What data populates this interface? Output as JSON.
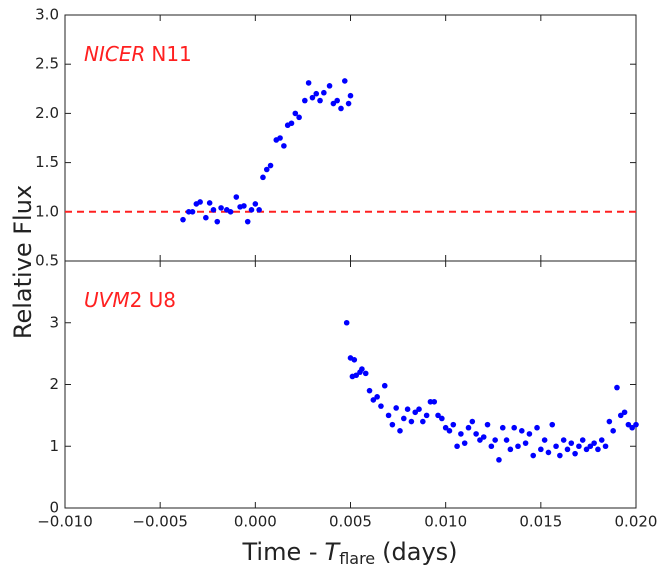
{
  "chart_data": [
    {
      "type": "scatter",
      "annotation": {
        "italic": "NICER",
        "normal": "N11"
      },
      "annotation_color": "#ff2020",
      "ylabel": "Relative Flux",
      "xlim": [
        -0.01,
        0.02
      ],
      "ylim": [
        0.5,
        3.0
      ],
      "yticks": [
        0.5,
        {
          "value": 1,
          "label": "1.0"
        },
        1.5,
        {
          "value": 2,
          "label": "2.0"
        },
        2.5,
        {
          "value": 3,
          "label": "3.0"
        }
      ],
      "reference_line": {
        "value": 1.0,
        "color": "#ff2020",
        "style": "dashed"
      },
      "color": "#0000ff",
      "x": [
        -0.0038,
        -0.0035,
        -0.0033,
        -0.0031,
        -0.0029,
        -0.0026,
        -0.0024,
        -0.0022,
        -0.002,
        -0.0018,
        -0.0015,
        -0.0013,
        -0.001,
        -0.0008,
        -0.0006,
        -0.0004,
        -0.0002,
        0.0,
        0.0002,
        0.0004,
        0.0006,
        0.0008,
        0.0011,
        0.0013,
        0.0015,
        0.0017,
        0.0019,
        0.0021,
        0.0023,
        0.0026,
        0.0028,
        0.003,
        0.0032,
        0.0034,
        0.0036,
        0.0039,
        0.0041,
        0.0043,
        0.0045,
        0.0047,
        0.0049,
        0.005
      ],
      "values": [
        0.92,
        1.0,
        1.0,
        1.08,
        1.1,
        0.94,
        1.09,
        1.02,
        0.9,
        1.04,
        1.02,
        1.0,
        1.15,
        1.05,
        1.06,
        0.9,
        1.02,
        1.08,
        1.02,
        1.35,
        1.43,
        1.47,
        1.73,
        1.75,
        1.67,
        1.88,
        1.9,
        2.0,
        1.96,
        2.13,
        2.31,
        2.16,
        2.2,
        2.13,
        2.21,
        2.28,
        2.1,
        2.13,
        2.05,
        2.33,
        2.1,
        2.18
      ]
    },
    {
      "type": "scatter",
      "annotation": {
        "italic": "UVM",
        "normal": "2 U8"
      },
      "annotation_color": "#ff2020",
      "xlabel": {
        "before": "Time -",
        "italic": "T",
        "subscript": "flare",
        "after": "(days)"
      },
      "xlim": [
        -0.01,
        0.02
      ],
      "xticks": [
        {
          "value": -0.01,
          "label": "−0.010"
        },
        {
          "value": -0.005,
          "label": "−0.005"
        },
        {
          "value": 0,
          "label": "0.000"
        },
        {
          "value": 0.005,
          "label": "0.005"
        },
        {
          "value": 0.01,
          "label": "0.010"
        },
        {
          "value": 0.015,
          "label": "0.015"
        },
        {
          "value": 0.02,
          "label": "0.020"
        }
      ],
      "ylim": [
        0,
        4
      ],
      "yticks": [
        0,
        1,
        2,
        3
      ],
      "color": "#0000ff",
      "x": [
        0.0048,
        0.005,
        0.0051,
        0.0052,
        0.0053,
        0.0055,
        0.0056,
        0.0058,
        0.006,
        0.0062,
        0.0064,
        0.0066,
        0.0068,
        0.007,
        0.0072,
        0.0074,
        0.0076,
        0.0078,
        0.008,
        0.0082,
        0.0084,
        0.0086,
        0.0088,
        0.009,
        0.0092,
        0.0094,
        0.0096,
        0.0098,
        0.01,
        0.0102,
        0.0104,
        0.0106,
        0.0108,
        0.011,
        0.0112,
        0.0114,
        0.0116,
        0.0118,
        0.012,
        0.0122,
        0.0124,
        0.0126,
        0.0128,
        0.013,
        0.0132,
        0.0134,
        0.0136,
        0.0138,
        0.014,
        0.0142,
        0.0144,
        0.0146,
        0.0148,
        0.015,
        0.0152,
        0.0154,
        0.0156,
        0.0158,
        0.016,
        0.0162,
        0.0164,
        0.0166,
        0.0168,
        0.017,
        0.0172,
        0.0174,
        0.0176,
        0.0178,
        0.018,
        0.0182,
        0.0184,
        0.0186,
        0.0188,
        0.019,
        0.0192,
        0.0194,
        0.0196,
        0.0198,
        0.02
      ],
      "values": [
        3.0,
        2.43,
        2.13,
        2.4,
        2.15,
        2.2,
        2.25,
        2.18,
        1.9,
        1.75,
        1.8,
        1.65,
        1.98,
        1.5,
        1.35,
        1.62,
        1.25,
        1.45,
        1.6,
        1.4,
        1.55,
        1.6,
        1.4,
        1.5,
        1.72,
        1.72,
        1.5,
        1.45,
        1.3,
        1.25,
        1.35,
        1.0,
        1.2,
        1.05,
        1.3,
        1.4,
        1.2,
        1.1,
        1.15,
        1.35,
        1.0,
        1.1,
        0.78,
        1.3,
        1.1,
        0.95,
        1.3,
        1.0,
        1.25,
        1.05,
        1.2,
        0.85,
        1.3,
        0.95,
        1.1,
        0.9,
        1.35,
        1.0,
        0.85,
        1.1,
        0.95,
        1.05,
        0.88,
        1.0,
        1.1,
        0.95,
        1.0,
        1.05,
        0.95,
        1.1,
        1.0,
        1.4,
        1.25,
        1.95,
        1.5,
        1.55,
        1.35,
        1.3,
        1.35
      ]
    }
  ]
}
